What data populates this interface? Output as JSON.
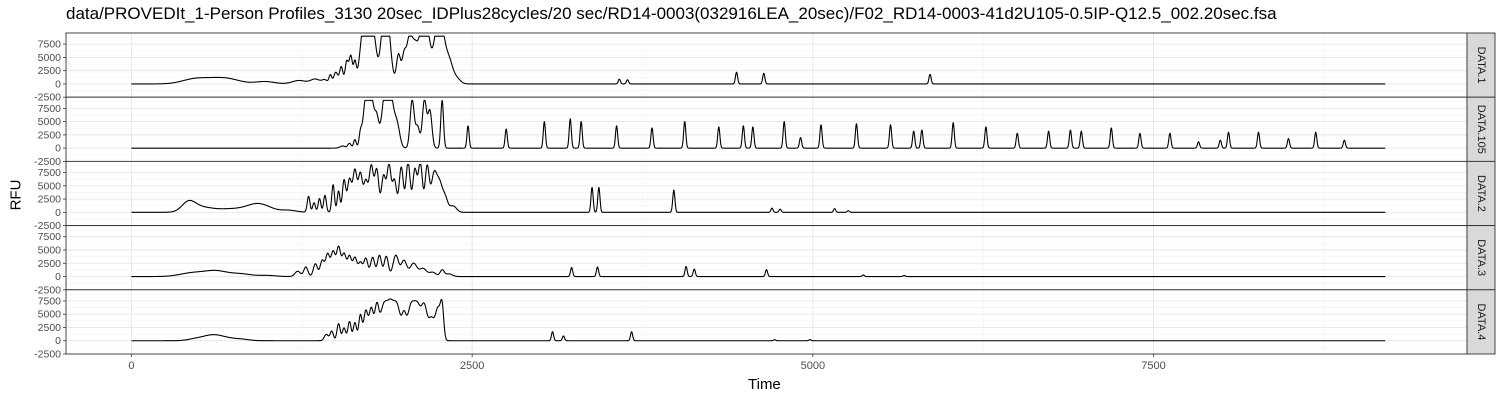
{
  "chart_data": {
    "type": "line",
    "title": "data/PROVEDIt_1-Person Profiles_3130 20sec_IDPlus28cycles/20 sec/RD14-0003(032916LEA_20sec)/F02_RD14-0003-41d2U105-0.5IP-Q12.5_002.20sec.fsa",
    "xlabel": "Time",
    "ylabel": "RFU",
    "xlim": [
      -480,
      9800
    ],
    "ylim": [
      -2500,
      9600
    ],
    "x_ticks": [
      0,
      2500,
      5000,
      7500
    ],
    "x_tick_labels": [
      "0",
      "2500",
      "5000",
      "7500"
    ],
    "y_ticks": [
      -2500,
      0,
      2500,
      5000,
      7500
    ],
    "y_tick_labels": [
      "-2500",
      "0",
      "2500",
      "5000",
      "7500"
    ],
    "grid": true,
    "x_range": [
      0,
      9200
    ],
    "facets": [
      {
        "label": "DATA.1",
        "peaks": [
          {
            "x": 450,
            "h": 700,
            "w": 90
          },
          {
            "x": 600,
            "h": 800,
            "w": 110
          },
          {
            "x": 720,
            "h": 600,
            "w": 90
          },
          {
            "x": 980,
            "h": 450,
            "w": 70
          },
          {
            "x": 1230,
            "h": 650,
            "w": 50
          },
          {
            "x": 1350,
            "h": 900,
            "w": 35
          },
          {
            "x": 1420,
            "h": 700,
            "w": 20
          },
          {
            "x": 1460,
            "h": 1600,
            "w": 10
          },
          {
            "x": 1500,
            "h": 2200,
            "w": 15
          },
          {
            "x": 1540,
            "h": 3200,
            "w": 12
          },
          {
            "x": 1580,
            "h": 4200,
            "w": 12
          },
          {
            "x": 1610,
            "h": 5200,
            "w": 12
          },
          {
            "x": 1640,
            "h": 3800,
            "w": 10
          },
          {
            "x": 1700,
            "h": 9000,
            "w": 25
          },
          {
            "x": 1740,
            "h": 9000,
            "w": 25
          },
          {
            "x": 1780,
            "h": 7000,
            "w": 20
          },
          {
            "x": 1850,
            "h": 9000,
            "w": 25
          },
          {
            "x": 1880,
            "h": 9000,
            "w": 25
          },
          {
            "x": 1960,
            "h": 5500,
            "w": 15
          },
          {
            "x": 2000,
            "h": 5000,
            "w": 15
          },
          {
            "x": 2040,
            "h": 8500,
            "w": 20
          },
          {
            "x": 2080,
            "h": 6000,
            "w": 20
          },
          {
            "x": 2130,
            "h": 8800,
            "w": 25
          },
          {
            "x": 2170,
            "h": 8800,
            "w": 25
          },
          {
            "x": 2240,
            "h": 8800,
            "w": 25
          },
          {
            "x": 2280,
            "h": 8000,
            "w": 25
          },
          {
            "x": 2330,
            "h": 4000,
            "w": 25
          },
          {
            "x": 2380,
            "h": 1200,
            "w": 30
          },
          {
            "x": 3580,
            "h": 900,
            "w": 8
          },
          {
            "x": 3640,
            "h": 800,
            "w": 8
          },
          {
            "x": 4440,
            "h": 2200,
            "w": 8
          },
          {
            "x": 4640,
            "h": 2000,
            "w": 8
          },
          {
            "x": 5860,
            "h": 1800,
            "w": 8
          }
        ]
      },
      {
        "label": "DATA.105",
        "peaks": [
          {
            "x": 1550,
            "h": 400,
            "w": 20
          },
          {
            "x": 1600,
            "h": 900,
            "w": 12
          },
          {
            "x": 1640,
            "h": 1600,
            "w": 10
          },
          {
            "x": 1680,
            "h": 2400,
            "w": 10
          },
          {
            "x": 1720,
            "h": 9000,
            "w": 20
          },
          {
            "x": 1760,
            "h": 9000,
            "w": 20
          },
          {
            "x": 1800,
            "h": 5000,
            "w": 15
          },
          {
            "x": 1860,
            "h": 9000,
            "w": 25
          },
          {
            "x": 1900,
            "h": 9000,
            "w": 25
          },
          {
            "x": 1950,
            "h": 4000,
            "w": 20
          },
          {
            "x": 2060,
            "h": 9000,
            "w": 15
          },
          {
            "x": 2100,
            "h": 4000,
            "w": 15
          },
          {
            "x": 2150,
            "h": 9000,
            "w": 15
          },
          {
            "x": 2190,
            "h": 7000,
            "w": 15
          },
          {
            "x": 2280,
            "h": 9000,
            "w": 10
          },
          {
            "x": 2470,
            "h": 4200,
            "w": 8
          },
          {
            "x": 2750,
            "h": 3600,
            "w": 8
          },
          {
            "x": 3030,
            "h": 5000,
            "w": 8
          },
          {
            "x": 3220,
            "h": 5500,
            "w": 8
          },
          {
            "x": 3300,
            "h": 5000,
            "w": 8
          },
          {
            "x": 3560,
            "h": 4200,
            "w": 8
          },
          {
            "x": 3820,
            "h": 3800,
            "w": 8
          },
          {
            "x": 4060,
            "h": 5000,
            "w": 8
          },
          {
            "x": 4310,
            "h": 4000,
            "w": 8
          },
          {
            "x": 4490,
            "h": 4200,
            "w": 8
          },
          {
            "x": 4560,
            "h": 4000,
            "w": 8
          },
          {
            "x": 4790,
            "h": 5000,
            "w": 8
          },
          {
            "x": 4910,
            "h": 2000,
            "w": 8
          },
          {
            "x": 5060,
            "h": 4400,
            "w": 8
          },
          {
            "x": 5320,
            "h": 4600,
            "w": 8
          },
          {
            "x": 5570,
            "h": 4400,
            "w": 8
          },
          {
            "x": 5740,
            "h": 3200,
            "w": 8
          },
          {
            "x": 5800,
            "h": 3400,
            "w": 8
          },
          {
            "x": 6030,
            "h": 4800,
            "w": 8
          },
          {
            "x": 6270,
            "h": 4000,
            "w": 8
          },
          {
            "x": 6500,
            "h": 2800,
            "w": 8
          },
          {
            "x": 6730,
            "h": 3200,
            "w": 8
          },
          {
            "x": 6890,
            "h": 3400,
            "w": 8
          },
          {
            "x": 6970,
            "h": 3200,
            "w": 8
          },
          {
            "x": 7190,
            "h": 3800,
            "w": 8
          },
          {
            "x": 7400,
            "h": 2800,
            "w": 8
          },
          {
            "x": 7620,
            "h": 2800,
            "w": 8
          },
          {
            "x": 7830,
            "h": 1200,
            "w": 8
          },
          {
            "x": 7990,
            "h": 1500,
            "w": 8
          },
          {
            "x": 8050,
            "h": 3000,
            "w": 8
          },
          {
            "x": 8270,
            "h": 3000,
            "w": 8
          },
          {
            "x": 8490,
            "h": 1800,
            "w": 8
          },
          {
            "x": 8690,
            "h": 3000,
            "w": 8
          },
          {
            "x": 8900,
            "h": 1500,
            "w": 8
          }
        ]
      },
      {
        "label": "DATA.2",
        "peaks": [
          {
            "x": 420,
            "h": 1800,
            "w": 50
          },
          {
            "x": 520,
            "h": 900,
            "w": 80
          },
          {
            "x": 700,
            "h": 500,
            "w": 80
          },
          {
            "x": 850,
            "h": 700,
            "w": 80
          },
          {
            "x": 920,
            "h": 900,
            "w": 60
          },
          {
            "x": 1000,
            "h": 700,
            "w": 60
          },
          {
            "x": 1150,
            "h": 400,
            "w": 60
          },
          {
            "x": 1300,
            "h": 3000,
            "w": 10
          },
          {
            "x": 1340,
            "h": 1800,
            "w": 10
          },
          {
            "x": 1380,
            "h": 2600,
            "w": 10
          },
          {
            "x": 1420,
            "h": 3200,
            "w": 10
          },
          {
            "x": 1480,
            "h": 5200,
            "w": 10
          },
          {
            "x": 1520,
            "h": 4000,
            "w": 10
          },
          {
            "x": 1560,
            "h": 6000,
            "w": 12
          },
          {
            "x": 1600,
            "h": 6200,
            "w": 15
          },
          {
            "x": 1640,
            "h": 7800,
            "w": 15
          },
          {
            "x": 1680,
            "h": 7200,
            "w": 15
          },
          {
            "x": 1720,
            "h": 5800,
            "w": 15
          },
          {
            "x": 1760,
            "h": 8600,
            "w": 15
          },
          {
            "x": 1800,
            "h": 8000,
            "w": 15
          },
          {
            "x": 1850,
            "h": 6800,
            "w": 15
          },
          {
            "x": 1890,
            "h": 8800,
            "w": 15
          },
          {
            "x": 1930,
            "h": 6000,
            "w": 15
          },
          {
            "x": 1980,
            "h": 8500,
            "w": 15
          },
          {
            "x": 2030,
            "h": 9400,
            "w": 15
          },
          {
            "x": 2080,
            "h": 8000,
            "w": 15
          },
          {
            "x": 2120,
            "h": 9200,
            "w": 15
          },
          {
            "x": 2170,
            "h": 8600,
            "w": 15
          },
          {
            "x": 2220,
            "h": 7000,
            "w": 20
          },
          {
            "x": 2260,
            "h": 5000,
            "w": 20
          },
          {
            "x": 2300,
            "h": 2800,
            "w": 20
          },
          {
            "x": 2360,
            "h": 1200,
            "w": 25
          },
          {
            "x": 3380,
            "h": 4700,
            "w": 8
          },
          {
            "x": 3430,
            "h": 4700,
            "w": 8
          },
          {
            "x": 3980,
            "h": 4200,
            "w": 8
          },
          {
            "x": 4700,
            "h": 800,
            "w": 8
          },
          {
            "x": 4760,
            "h": 600,
            "w": 8
          },
          {
            "x": 5160,
            "h": 700,
            "w": 8
          },
          {
            "x": 5260,
            "h": 300,
            "w": 8
          }
        ]
      },
      {
        "label": "DATA.3",
        "peaks": [
          {
            "x": 450,
            "h": 700,
            "w": 90
          },
          {
            "x": 620,
            "h": 1000,
            "w": 80
          },
          {
            "x": 800,
            "h": 500,
            "w": 80
          },
          {
            "x": 1000,
            "h": 200,
            "w": 60
          },
          {
            "x": 1220,
            "h": 1000,
            "w": 20
          },
          {
            "x": 1280,
            "h": 1800,
            "w": 15
          },
          {
            "x": 1350,
            "h": 2400,
            "w": 15
          },
          {
            "x": 1400,
            "h": 3000,
            "w": 15
          },
          {
            "x": 1440,
            "h": 4200,
            "w": 15
          },
          {
            "x": 1480,
            "h": 4600,
            "w": 15
          },
          {
            "x": 1520,
            "h": 5500,
            "w": 15
          },
          {
            "x": 1560,
            "h": 4200,
            "w": 15
          },
          {
            "x": 1600,
            "h": 3800,
            "w": 15
          },
          {
            "x": 1640,
            "h": 3500,
            "w": 15
          },
          {
            "x": 1680,
            "h": 2600,
            "w": 15
          },
          {
            "x": 1720,
            "h": 3400,
            "w": 15
          },
          {
            "x": 1770,
            "h": 3600,
            "w": 15
          },
          {
            "x": 1820,
            "h": 4000,
            "w": 15
          },
          {
            "x": 1870,
            "h": 3800,
            "w": 15
          },
          {
            "x": 1940,
            "h": 4000,
            "w": 20
          },
          {
            "x": 2000,
            "h": 3000,
            "w": 20
          },
          {
            "x": 2070,
            "h": 2500,
            "w": 25
          },
          {
            "x": 2140,
            "h": 1500,
            "w": 25
          },
          {
            "x": 2210,
            "h": 800,
            "w": 25
          },
          {
            "x": 2280,
            "h": 1200,
            "w": 15
          },
          {
            "x": 2330,
            "h": 500,
            "w": 25
          },
          {
            "x": 3230,
            "h": 1700,
            "w": 8
          },
          {
            "x": 3420,
            "h": 1800,
            "w": 8
          },
          {
            "x": 4070,
            "h": 1900,
            "w": 8
          },
          {
            "x": 4130,
            "h": 1400,
            "w": 8
          },
          {
            "x": 4660,
            "h": 1300,
            "w": 8
          },
          {
            "x": 5370,
            "h": 300,
            "w": 8
          },
          {
            "x": 5670,
            "h": 200,
            "w": 8
          }
        ]
      },
      {
        "label": "DATA.4",
        "peaks": [
          {
            "x": 480,
            "h": 400,
            "w": 60
          },
          {
            "x": 590,
            "h": 900,
            "w": 60
          },
          {
            "x": 680,
            "h": 500,
            "w": 60
          },
          {
            "x": 800,
            "h": 300,
            "w": 60
          },
          {
            "x": 1430,
            "h": 1200,
            "w": 15
          },
          {
            "x": 1470,
            "h": 1800,
            "w": 12
          },
          {
            "x": 1520,
            "h": 3200,
            "w": 12
          },
          {
            "x": 1560,
            "h": 2400,
            "w": 12
          },
          {
            "x": 1600,
            "h": 3600,
            "w": 12
          },
          {
            "x": 1640,
            "h": 3400,
            "w": 12
          },
          {
            "x": 1680,
            "h": 4800,
            "w": 12
          },
          {
            "x": 1720,
            "h": 5600,
            "w": 15
          },
          {
            "x": 1760,
            "h": 6000,
            "w": 15
          },
          {
            "x": 1800,
            "h": 6200,
            "w": 15
          },
          {
            "x": 1850,
            "h": 6200,
            "w": 25
          },
          {
            "x": 1900,
            "h": 6200,
            "w": 25
          },
          {
            "x": 1950,
            "h": 6200,
            "w": 25
          },
          {
            "x": 2000,
            "h": 4000,
            "w": 15
          },
          {
            "x": 2050,
            "h": 6200,
            "w": 25
          },
          {
            "x": 2100,
            "h": 6200,
            "w": 25
          },
          {
            "x": 2150,
            "h": 6000,
            "w": 20
          },
          {
            "x": 2200,
            "h": 4000,
            "w": 20
          },
          {
            "x": 2250,
            "h": 6000,
            "w": 20
          },
          {
            "x": 2280,
            "h": 5500,
            "w": 12
          },
          {
            "x": 3090,
            "h": 1700,
            "w": 8
          },
          {
            "x": 3170,
            "h": 900,
            "w": 8
          },
          {
            "x": 3670,
            "h": 1700,
            "w": 8
          },
          {
            "x": 4720,
            "h": 200,
            "w": 8
          },
          {
            "x": 4980,
            "h": 200,
            "w": 8
          }
        ]
      }
    ]
  }
}
